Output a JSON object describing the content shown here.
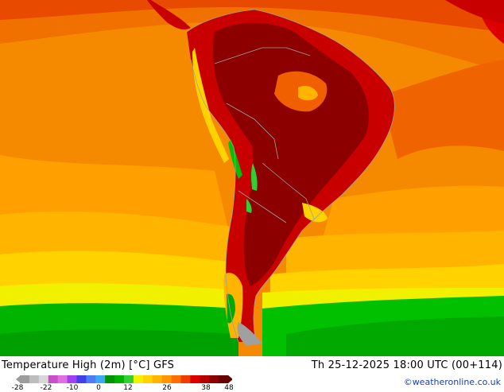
{
  "map": {
    "title": "Temperature High (2m) [°C] GFS",
    "valid_time": "Th 25-12-2025 18:00 UTC (00+114)",
    "credit": "©weatheronline.co.uk",
    "colorbar": {
      "ticks": [
        "-28",
        "-22",
        "-10",
        "0",
        "12",
        "26",
        "38",
        "48"
      ],
      "colors": [
        "#9c9c9c",
        "#bdbdbd",
        "#d8d8d8",
        "#c850c8",
        "#e070e0",
        "#a040f0",
        "#4040e8",
        "#4e7cf4",
        "#40a8f0",
        "#009600",
        "#00b400",
        "#30d030",
        "#f0f000",
        "#ffd200",
        "#ffb400",
        "#ff9600",
        "#ff6e00",
        "#f03c00",
        "#dc0000",
        "#b40000",
        "#8c0000",
        "#640000"
      ]
    },
    "palette": {
      "ocean_warm": "#f58a00",
      "ocean_mid": "#ffaa00",
      "ocean_cool": "#ffd200",
      "cold_band": "#00c000",
      "hot_land": "#b00000",
      "very_hot": "#8c0000",
      "border": "#a0a0a0"
    }
  }
}
